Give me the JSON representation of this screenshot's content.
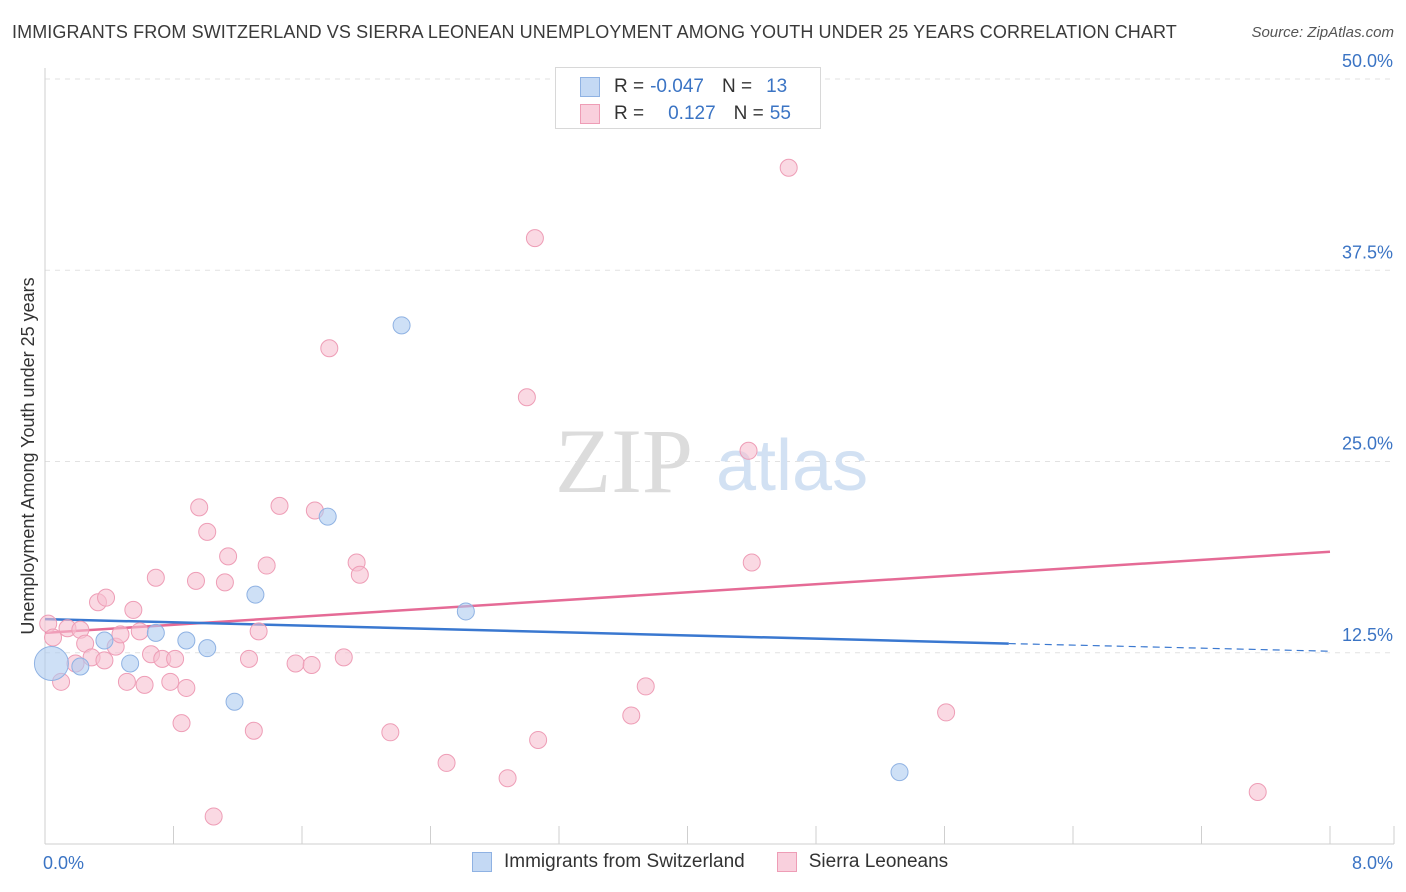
{
  "title": "IMMIGRANTS FROM SWITZERLAND VS SIERRA LEONEAN UNEMPLOYMENT AMONG YOUTH UNDER 25 YEARS CORRELATION CHART",
  "source": "Source: ZipAtlas.com",
  "watermark": {
    "zip": "ZIP",
    "atlas": "atlas"
  },
  "legend": {
    "series1": {
      "r_label": "R =",
      "r_value": "-0.047",
      "n_label": "N =",
      "n_value": "13"
    },
    "series2": {
      "r_label": "R =",
      "r_value": "0.127",
      "n_label": "N =",
      "n_value": "55"
    }
  },
  "colors": {
    "blue_fill": "#aecbf0",
    "blue_stroke": "#8fb2e3",
    "blue_line": "#3a78d0",
    "pink_fill": "#f6bfd0",
    "pink_stroke": "#ee9db6",
    "pink_line": "#e56b96",
    "tick_text": "#3b74c4",
    "grid": "#e2e2e2"
  },
  "chart_data": {
    "type": "scatter",
    "title": "IMMIGRANTS FROM SWITZERLAND VS SIERRA LEONEAN UNEMPLOYMENT AMONG YOUTH UNDER 25 YEARS CORRELATION CHART",
    "xlabel": "",
    "ylabel": "Unemployment Among Youth under 25 years",
    "xlim": [
      0,
      8
    ],
    "ylim": [
      0,
      50
    ],
    "x_tick_labels": [
      "0.0%",
      "8.0%"
    ],
    "y_ticks": [
      12.5,
      25.0,
      37.5,
      50.0
    ],
    "y_tick_labels": [
      "12.5%",
      "25.0%",
      "37.5%",
      "50.0%"
    ],
    "series": [
      {
        "name": "Immigrants from Switzerland",
        "color": "blue",
        "r": -0.047,
        "n": 13,
        "trend": {
          "x0": 0,
          "y0": 14.7,
          "x1": 6.0,
          "y1": 13.1,
          "dash_to_x": 8.0,
          "dash_y1": 12.6
        },
        "points": [
          {
            "x": 0.04,
            "y": 11.8,
            "big": true
          },
          {
            "x": 0.22,
            "y": 11.6
          },
          {
            "x": 0.37,
            "y": 13.3
          },
          {
            "x": 0.53,
            "y": 11.8
          },
          {
            "x": 0.69,
            "y": 13.8
          },
          {
            "x": 0.88,
            "y": 13.3
          },
          {
            "x": 1.01,
            "y": 12.8
          },
          {
            "x": 1.18,
            "y": 9.3
          },
          {
            "x": 1.31,
            "y": 16.3
          },
          {
            "x": 1.76,
            "y": 21.4
          },
          {
            "x": 2.22,
            "y": 33.9
          },
          {
            "x": 2.62,
            "y": 15.2
          },
          {
            "x": 5.32,
            "y": 4.7
          }
        ]
      },
      {
        "name": "Sierra Leoneans",
        "color": "pink",
        "r": 0.127,
        "n": 55,
        "trend": {
          "x0": 0,
          "y0": 13.8,
          "x1": 8.0,
          "y1": 19.1
        },
        "points": [
          {
            "x": 0.02,
            "y": 14.4
          },
          {
            "x": 0.05,
            "y": 13.5
          },
          {
            "x": 0.1,
            "y": 10.6
          },
          {
            "x": 0.14,
            "y": 14.1
          },
          {
            "x": 0.19,
            "y": 11.8
          },
          {
            "x": 0.22,
            "y": 14.0
          },
          {
            "x": 0.25,
            "y": 13.1
          },
          {
            "x": 0.29,
            "y": 12.2
          },
          {
            "x": 0.33,
            "y": 15.8
          },
          {
            "x": 0.37,
            "y": 12.0
          },
          {
            "x": 0.38,
            "y": 16.1
          },
          {
            "x": 0.44,
            "y": 12.9
          },
          {
            "x": 0.47,
            "y": 13.7
          },
          {
            "x": 0.51,
            "y": 10.6
          },
          {
            "x": 0.55,
            "y": 15.3
          },
          {
            "x": 0.59,
            "y": 13.9
          },
          {
            "x": 0.62,
            "y": 10.4
          },
          {
            "x": 0.66,
            "y": 12.4
          },
          {
            "x": 0.69,
            "y": 17.4
          },
          {
            "x": 0.73,
            "y": 12.1
          },
          {
            "x": 0.78,
            "y": 10.6
          },
          {
            "x": 0.81,
            "y": 12.1
          },
          {
            "x": 0.85,
            "y": 7.9
          },
          {
            "x": 0.88,
            "y": 10.2
          },
          {
            "x": 0.94,
            "y": 17.2
          },
          {
            "x": 0.96,
            "y": 22.0
          },
          {
            "x": 1.01,
            "y": 20.4
          },
          {
            "x": 1.05,
            "y": 1.8
          },
          {
            "x": 1.12,
            "y": 17.1
          },
          {
            "x": 1.14,
            "y": 18.8
          },
          {
            "x": 1.27,
            "y": 12.1
          },
          {
            "x": 1.3,
            "y": 7.4
          },
          {
            "x": 1.33,
            "y": 13.9
          },
          {
            "x": 1.38,
            "y": 18.2
          },
          {
            "x": 1.46,
            "y": 22.1
          },
          {
            "x": 1.56,
            "y": 11.8
          },
          {
            "x": 1.66,
            "y": 11.7
          },
          {
            "x": 1.68,
            "y": 21.8
          },
          {
            "x": 1.77,
            "y": 32.4
          },
          {
            "x": 1.86,
            "y": 12.2
          },
          {
            "x": 1.94,
            "y": 18.4
          },
          {
            "x": 1.96,
            "y": 17.6
          },
          {
            "x": 2.15,
            "y": 7.3
          },
          {
            "x": 2.5,
            "y": 5.3
          },
          {
            "x": 2.88,
            "y": 4.3
          },
          {
            "x": 3.0,
            "y": 29.2
          },
          {
            "x": 3.05,
            "y": 39.6
          },
          {
            "x": 3.07,
            "y": 6.8
          },
          {
            "x": 3.65,
            "y": 8.4
          },
          {
            "x": 3.74,
            "y": 10.3
          },
          {
            "x": 4.38,
            "y": 25.7
          },
          {
            "x": 4.4,
            "y": 18.4
          },
          {
            "x": 4.63,
            "y": 44.2
          },
          {
            "x": 5.61,
            "y": 8.6
          },
          {
            "x": 7.55,
            "y": 3.4
          }
        ]
      }
    ]
  }
}
